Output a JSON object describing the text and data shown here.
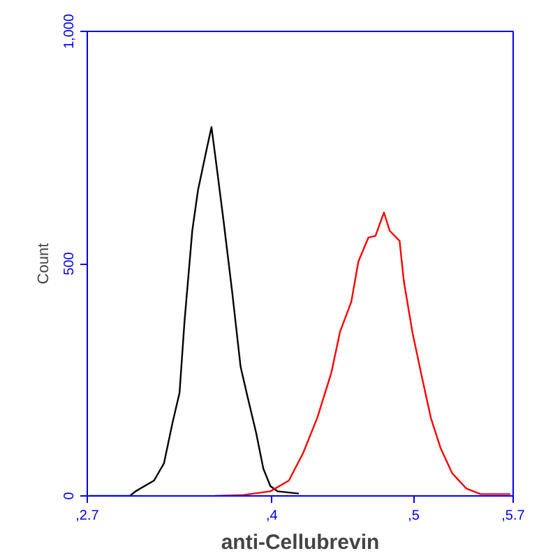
{
  "chart_data": {
    "type": "line",
    "xlabel": "anti-Cellubrevin",
    "ylabel": "Count",
    "xlim": [
      2.7,
      5.7
    ],
    "xticks": [
      {
        "value": 2.7,
        "label": ",2.7"
      },
      {
        "value": 4,
        "label": ",4"
      },
      {
        "value": 5,
        "label": ",5"
      },
      {
        "value": 5.7,
        "label": ",5.7"
      }
    ],
    "ylim": [
      0,
      1000
    ],
    "yticks": [
      0,
      500,
      {
        "value": 1000,
        "label": "1,000"
      }
    ],
    "grid": false,
    "marker": "none",
    "line_style": "solid",
    "series": [
      {
        "color": "#000000",
        "x": [
          2.72,
          2.9,
          3.0,
          3.04,
          3.17,
          3.24,
          3.3,
          3.35,
          3.385,
          3.44,
          3.48,
          3.54,
          3.575,
          3.61,
          3.66,
          3.72,
          3.78,
          3.83,
          3.89,
          3.94,
          3.99,
          4.04,
          4.19
        ],
        "values": [
          0,
          0,
          0,
          10,
          33,
          70,
          157,
          222,
          376,
          572,
          658,
          745,
          794,
          712,
          592,
          441,
          278,
          212,
          135,
          59,
          21,
          10,
          5
        ]
      },
      {
        "color": "#ff0000",
        "x": [
          3.6,
          3.8,
          3.99,
          4.12,
          4.22,
          4.32,
          4.42,
          4.48,
          4.56,
          4.61,
          4.68,
          4.73,
          4.79,
          4.83,
          4.9,
          4.93,
          4.99,
          5.05,
          5.12,
          5.19,
          5.27,
          5.37,
          5.47,
          5.68
        ],
        "values": [
          0,
          2,
          10,
          33,
          92,
          168,
          266,
          353,
          418,
          505,
          556,
          560,
          610,
          571,
          549,
          462,
          353,
          266,
          168,
          102,
          49,
          16,
          4,
          4
        ]
      }
    ]
  }
}
